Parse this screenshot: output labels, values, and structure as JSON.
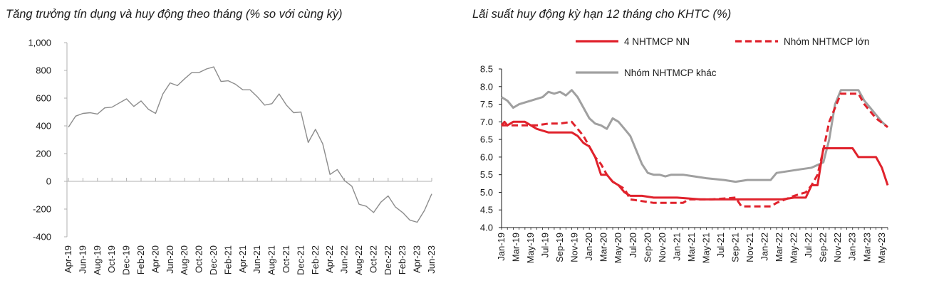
{
  "chart_data": [
    {
      "id": "credit",
      "type": "line",
      "title": "Tăng trưởng tín dụng và huy động theo tháng (% so với cùng kỳ)",
      "ylim": [
        -400,
        1000
      ],
      "yticks": [
        -400,
        -200,
        0,
        200,
        400,
        600,
        800,
        1000
      ],
      "ytick_labels": [
        "-400",
        "-200",
        "0",
        "200",
        "400",
        "600",
        "800",
        "1,000"
      ],
      "xtick_labels": [
        "Apr-19",
        "Jun-19",
        "Aug-19",
        "Oct-19",
        "Dec-19",
        "Feb-20",
        "Apr-20",
        "Jun-20",
        "Aug-20",
        "Oct-20",
        "Dec-20",
        "Feb-21",
        "Apr-21",
        "Jun-21",
        "Aug-21",
        "Oct-21",
        "Dec-21",
        "Feb-22",
        "Apr-22",
        "Jun-22",
        "Aug-22",
        "Oct-22",
        "Dec-22",
        "Feb-23",
        "Apr-23",
        "Jun-23"
      ],
      "color": "#8c8c8c",
      "series": [
        {
          "values": [
            390,
            470,
            490,
            495,
            485,
            530,
            535,
            565,
            595,
            540,
            580,
            520,
            490,
            630,
            710,
            690,
            740,
            785,
            785,
            810,
            825,
            720,
            725,
            700,
            660,
            660,
            610,
            550,
            560,
            630,
            550,
            495,
            500,
            280,
            375,
            270,
            50,
            85,
            5,
            -35,
            -165,
            -180,
            -225,
            -150,
            -105,
            -185,
            -225,
            -280,
            -295,
            -210,
            -90
          ]
        }
      ]
    },
    {
      "id": "rates",
      "type": "line",
      "title": "Lãi suất huy động kỳ hạn 12 tháng cho KHTC (%)",
      "ylim": [
        4.0,
        8.5
      ],
      "yticks": [
        4.0,
        4.5,
        5.0,
        5.5,
        6.0,
        6.5,
        7.0,
        7.5,
        8.0,
        8.5
      ],
      "ytick_labels": [
        "4.0",
        "4.5",
        "5.0",
        "5.5",
        "6.0",
        "6.5",
        "7.0",
        "7.5",
        "8.0",
        "8.5"
      ],
      "xtick_labels": [
        "Jan-19",
        "Mar-19",
        "May-19",
        "Jul-19",
        "Sep-19",
        "Nov-19",
        "Jan-20",
        "Mar-20",
        "May-20",
        "Jul-20",
        "Sep-20",
        "Nov-20",
        "Jan-21",
        "Mar-21",
        "May-21",
        "Jul-21",
        "Sep-21",
        "Nov-21",
        "Jan-22",
        "Mar-22",
        "May-22",
        "Jul-22",
        "Sep-22",
        "Nov-22",
        "Jan-23",
        "Mar-23",
        "May-23"
      ],
      "legend": [
        "4 NHTMCP NN",
        "Nhóm NHTMCP lớn",
        "Nhóm NHTMCP khác"
      ],
      "series": [
        {
          "name": "4 NHTMCP NN",
          "color": "#e0222c",
          "dash": "solid",
          "points": [
            [
              0,
              6.9
            ],
            [
              0.5,
              7.0
            ],
            [
              1,
              6.9
            ],
            [
              2,
              7.0
            ],
            [
              4,
              7.0
            ],
            [
              6,
              6.8
            ],
            [
              8,
              6.7
            ],
            [
              10,
              6.7
            ],
            [
              12,
              6.7
            ],
            [
              13,
              6.6
            ],
            [
              14,
              6.4
            ],
            [
              15,
              6.3
            ],
            [
              16,
              6.0
            ],
            [
              17,
              5.5
            ],
            [
              18,
              5.5
            ],
            [
              19,
              5.3
            ],
            [
              20,
              5.2
            ],
            [
              21,
              5.0
            ],
            [
              22,
              4.9
            ],
            [
              24,
              4.9
            ],
            [
              26,
              4.85
            ],
            [
              30,
              4.85
            ],
            [
              34,
              4.8
            ],
            [
              38,
              4.8
            ],
            [
              40,
              4.8
            ],
            [
              42,
              4.8
            ],
            [
              46,
              4.8
            ],
            [
              48,
              4.8
            ],
            [
              50,
              4.85
            ],
            [
              52,
              4.85
            ],
            [
              53,
              5.2
            ],
            [
              54,
              5.2
            ],
            [
              55,
              6.25
            ],
            [
              58,
              6.25
            ],
            [
              60,
              6.25
            ],
            [
              61,
              6.0
            ],
            [
              64,
              6.0
            ],
            [
              65,
              5.7
            ],
            [
              66,
              5.2
            ]
          ]
        },
        {
          "name": "Nhóm NHTMCP lớn",
          "color": "#e0222c",
          "dash": "dashed",
          "points": [
            [
              0,
              6.9
            ],
            [
              2,
              6.9
            ],
            [
              4,
              6.9
            ],
            [
              6,
              6.9
            ],
            [
              8,
              6.95
            ],
            [
              10,
              6.95
            ],
            [
              12,
              7.0
            ],
            [
              14,
              6.6
            ],
            [
              15,
              6.3
            ],
            [
              16,
              6.0
            ],
            [
              17,
              5.8
            ],
            [
              18,
              5.5
            ],
            [
              19,
              5.3
            ],
            [
              20,
              5.2
            ],
            [
              21,
              5.1
            ],
            [
              22,
              4.8
            ],
            [
              24,
              4.75
            ],
            [
              26,
              4.7
            ],
            [
              28,
              4.7
            ],
            [
              30,
              4.7
            ],
            [
              31,
              4.7
            ],
            [
              32,
              4.8
            ],
            [
              34,
              4.8
            ],
            [
              36,
              4.8
            ],
            [
              40,
              4.85
            ],
            [
              41,
              4.6
            ],
            [
              44,
              4.6
            ],
            [
              46,
              4.6
            ],
            [
              47,
              4.7
            ],
            [
              50,
              4.9
            ],
            [
              52,
              5.0
            ],
            [
              53,
              5.2
            ],
            [
              54,
              5.5
            ],
            [
              55,
              6.2
            ],
            [
              56,
              7.0
            ],
            [
              58,
              7.8
            ],
            [
              61,
              7.8
            ],
            [
              62,
              7.5
            ],
            [
              64,
              7.1
            ],
            [
              66,
              6.85
            ]
          ]
        },
        {
          "name": "Nhóm NHTMCP khác",
          "color": "#a0a0a0",
          "dash": "solid",
          "points": [
            [
              0,
              7.7
            ],
            [
              1,
              7.6
            ],
            [
              2,
              7.4
            ],
            [
              3,
              7.5
            ],
            [
              5,
              7.6
            ],
            [
              7,
              7.7
            ],
            [
              8,
              7.85
            ],
            [
              9,
              7.8
            ],
            [
              10,
              7.85
            ],
            [
              11,
              7.75
            ],
            [
              12,
              7.9
            ],
            [
              13,
              7.7
            ],
            [
              14,
              7.4
            ],
            [
              15,
              7.1
            ],
            [
              16,
              6.95
            ],
            [
              17,
              6.9
            ],
            [
              18,
              6.8
            ],
            [
              19,
              7.1
            ],
            [
              20,
              7.0
            ],
            [
              21,
              6.8
            ],
            [
              22,
              6.6
            ],
            [
              23,
              6.2
            ],
            [
              24,
              5.8
            ],
            [
              25,
              5.55
            ],
            [
              26,
              5.5
            ],
            [
              27,
              5.5
            ],
            [
              28,
              5.45
            ],
            [
              29,
              5.5
            ],
            [
              31,
              5.5
            ],
            [
              33,
              5.45
            ],
            [
              35,
              5.4
            ],
            [
              38,
              5.35
            ],
            [
              40,
              5.3
            ],
            [
              42,
              5.35
            ],
            [
              46,
              5.35
            ],
            [
              47,
              5.55
            ],
            [
              49,
              5.6
            ],
            [
              51,
              5.65
            ],
            [
              53,
              5.7
            ],
            [
              55,
              5.85
            ],
            [
              56,
              6.5
            ],
            [
              57,
              7.5
            ],
            [
              58,
              7.9
            ],
            [
              61,
              7.9
            ],
            [
              62,
              7.6
            ],
            [
              63,
              7.4
            ],
            [
              64,
              7.2
            ],
            [
              65,
              7.0
            ],
            [
              66,
              6.85
            ]
          ]
        }
      ]
    }
  ]
}
